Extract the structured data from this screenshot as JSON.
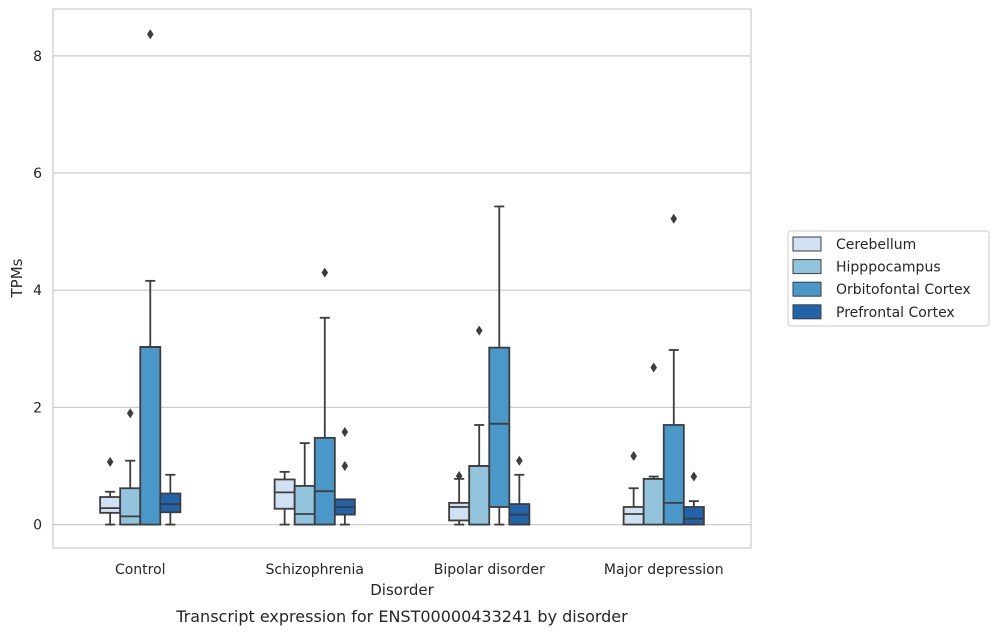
{
  "chart_data": {
    "type": "box",
    "caption": "Transcript expression for ENST00000433241 by disorder",
    "xlabel": "Disorder",
    "ylabel": "TPMs",
    "ylim": [
      -0.4,
      8.8
    ],
    "yticks": [
      0,
      2,
      4,
      6,
      8
    ],
    "grid": "horizontal",
    "legend_position": "right",
    "categories": [
      "Control",
      "Schizophrenia",
      "Bipolar disorder",
      "Major depression"
    ],
    "colors": {
      "Cerebellum": "#cfe1f2",
      "Hipppocampus": "#93c4de",
      "Orbitofontal Cortex": "#4a98c9",
      "Prefrontal Cortex": "#2164ab",
      "outline": "#3d3d3d",
      "grid": "#cccccc"
    },
    "series": [
      {
        "name": "Cerebellum",
        "boxes": [
          {
            "whisker_low": 0.0,
            "q1": 0.2,
            "median": 0.28,
            "q3": 0.47,
            "whisker_high": 0.56,
            "outliers": [
              1.07
            ]
          },
          {
            "whisker_low": 0.0,
            "q1": 0.27,
            "median": 0.55,
            "q3": 0.77,
            "whisker_high": 0.9,
            "outliers": []
          },
          {
            "whisker_low": 0.0,
            "q1": 0.07,
            "median": 0.3,
            "q3": 0.37,
            "whisker_high": 0.78,
            "outliers": [
              0.83
            ]
          },
          {
            "whisker_low": 0.0,
            "q1": 0.0,
            "median": 0.18,
            "q3": 0.3,
            "whisker_high": 0.62,
            "outliers": [
              1.17
            ]
          }
        ]
      },
      {
        "name": "Hipppocampus",
        "boxes": [
          {
            "whisker_low": 0.0,
            "q1": 0.0,
            "median": 0.14,
            "q3": 0.62,
            "whisker_high": 1.09,
            "outliers": [
              1.9
            ]
          },
          {
            "whisker_low": 0.0,
            "q1": 0.0,
            "median": 0.18,
            "q3": 0.66,
            "whisker_high": 1.39,
            "outliers": []
          },
          {
            "whisker_low": 0.0,
            "q1": 0.0,
            "median": 1.0,
            "q3": 1.0,
            "whisker_high": 1.7,
            "outliers": [
              3.31
            ]
          },
          {
            "whisker_low": 0.0,
            "q1": 0.0,
            "median": 0.78,
            "q3": 0.78,
            "whisker_high": 0.82,
            "outliers": [
              2.68
            ]
          }
        ]
      },
      {
        "name": "Orbitofontal Cortex",
        "boxes": [
          {
            "whisker_low": 0.0,
            "q1": 0.0,
            "median": 3.03,
            "q3": 3.03,
            "whisker_high": 4.16,
            "outliers": [
              8.37
            ]
          },
          {
            "whisker_low": 0.0,
            "q1": 0.0,
            "median": 0.57,
            "q3": 1.48,
            "whisker_high": 3.53,
            "outliers": [
              4.3
            ]
          },
          {
            "whisker_low": 0.0,
            "q1": 0.3,
            "median": 1.72,
            "q3": 3.02,
            "whisker_high": 5.43,
            "outliers": []
          },
          {
            "whisker_low": 0.0,
            "q1": 0.0,
            "median": 0.37,
            "q3": 1.7,
            "whisker_high": 2.98,
            "outliers": [
              5.22
            ]
          }
        ]
      },
      {
        "name": "Prefrontal Cortex",
        "boxes": [
          {
            "whisker_low": 0.0,
            "q1": 0.21,
            "median": 0.35,
            "q3": 0.53,
            "whisker_high": 0.85,
            "outliers": []
          },
          {
            "whisker_low": 0.0,
            "q1": 0.17,
            "median": 0.3,
            "q3": 0.43,
            "whisker_high": 0.43,
            "outliers": [
              1.0,
              1.58
            ]
          },
          {
            "whisker_low": 0.0,
            "q1": 0.0,
            "median": 0.17,
            "q3": 0.35,
            "whisker_high": 0.85,
            "outliers": [
              1.09
            ]
          },
          {
            "whisker_low": 0.0,
            "q1": 0.0,
            "median": 0.1,
            "q3": 0.3,
            "whisker_high": 0.4,
            "outliers": [
              0.82
            ]
          }
        ]
      }
    ]
  }
}
